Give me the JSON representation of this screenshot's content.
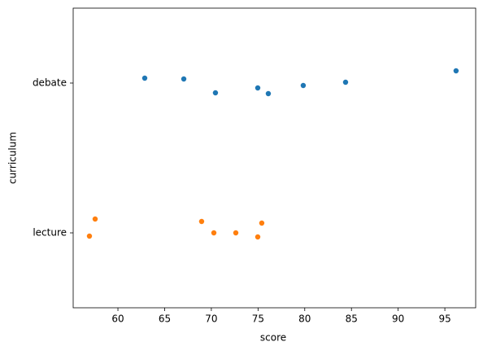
{
  "chart_data": {
    "type": "strip",
    "xlabel": "score",
    "ylabel": "curriculum",
    "categories": [
      "debate",
      "lecture"
    ],
    "values": [
      [
        62.87,
        67.05,
        70.44,
        74.97,
        76.1,
        79.84,
        84.37,
        96.2
      ],
      [
        56.95,
        57.56,
        68.96,
        70.27,
        72.62,
        74.97,
        75.4
      ]
    ],
    "colors": [
      "#1f77b4",
      "#ff7f0e"
    ],
    "xlim": [
      55.21,
      98.3
    ],
    "xticks": [
      60,
      65,
      70,
      75,
      80,
      85,
      90,
      95
    ]
  }
}
